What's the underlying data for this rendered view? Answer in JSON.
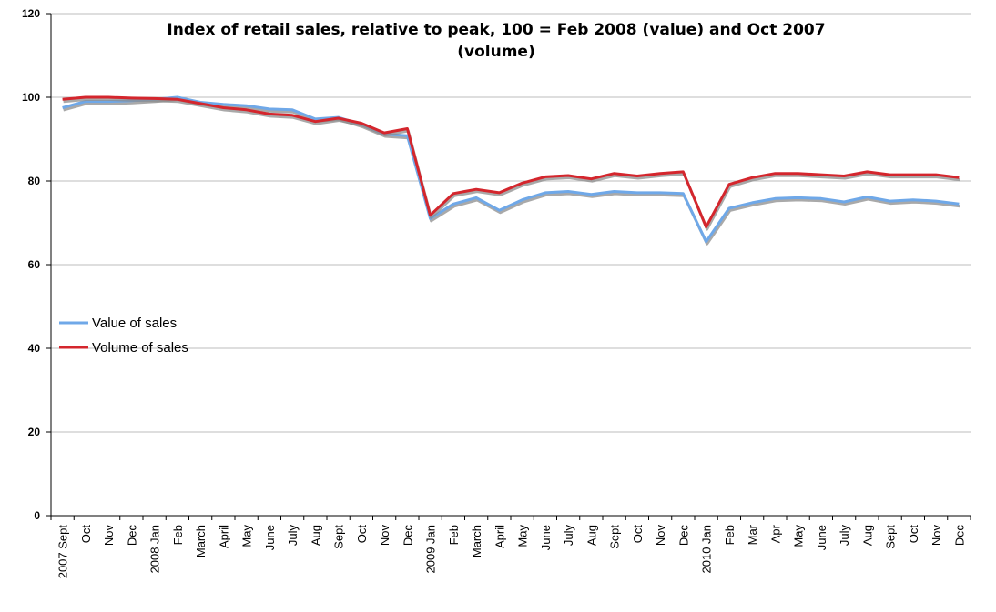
{
  "chart_data": {
    "type": "line",
    "title_lines": [
      "Index of retail sales, relative to peak, 100 = Feb 2008 (value) and Oct 2007",
      "(volume)"
    ],
    "xlabel": "",
    "ylabel": "",
    "ylim": [
      0,
      120
    ],
    "yticks": [
      0,
      20,
      40,
      60,
      80,
      100,
      120
    ],
    "grid": true,
    "legend_position": "left-middle",
    "categories": [
      "2007 Sept",
      "Oct",
      "Nov",
      "Dec",
      "2008 Jan",
      "Feb",
      "March",
      "April",
      "May",
      "June",
      "July",
      "Aug",
      "Sept",
      "Oct",
      "Nov",
      "Dec",
      "2009 Jan",
      "Feb",
      "March",
      "April",
      "May",
      "June",
      "July",
      "Aug",
      "Sept",
      "Oct",
      "Nov",
      "Dec",
      "2010 Jan",
      "Feb",
      "Mar",
      "Apr",
      "May",
      "June",
      "July",
      "Aug",
      "Sept",
      "Oct",
      "Nov",
      "Dec"
    ],
    "series": [
      {
        "name": "Value of sales",
        "color": "#6fa8e8",
        "values": [
          97.5,
          99.0,
          99.0,
          99.2,
          99.5,
          100.0,
          98.8,
          98.3,
          98.0,
          97.2,
          97.0,
          94.8,
          95.2,
          93.5,
          91.2,
          90.8,
          71.0,
          74.5,
          76.0,
          73.0,
          75.5,
          77.2,
          77.5,
          76.8,
          77.5,
          77.2,
          77.2,
          77.0,
          65.5,
          73.5,
          74.8,
          75.8,
          76.0,
          75.8,
          75.0,
          76.2,
          75.2,
          75.5,
          75.2,
          74.5
        ]
      },
      {
        "name": "Volume of sales",
        "color": "#d4262d",
        "values": [
          99.5,
          100.0,
          100.0,
          99.8,
          99.7,
          99.5,
          98.5,
          97.5,
          97.0,
          96.0,
          95.7,
          94.2,
          95.0,
          93.8,
          91.5,
          92.5,
          71.8,
          77.0,
          78.0,
          77.2,
          79.5,
          81.0,
          81.3,
          80.5,
          81.8,
          81.2,
          81.8,
          82.2,
          69.0,
          79.2,
          80.8,
          81.8,
          81.8,
          81.5,
          81.2,
          82.2,
          81.5,
          81.5,
          81.5,
          80.8
        ]
      }
    ]
  }
}
